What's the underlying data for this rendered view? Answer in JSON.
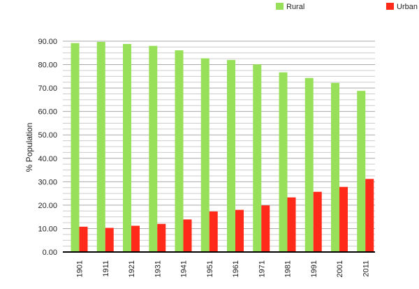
{
  "chart_data": {
    "type": "bar",
    "title": "",
    "xlabel": "",
    "ylabel": "% Population",
    "ylim": [
      0,
      90
    ],
    "y_ticks": [
      "0.00",
      "10.00",
      "20.00",
      "30.00",
      "40.00",
      "50.00",
      "60.00",
      "70.00",
      "80.00",
      "90.00"
    ],
    "grid": true,
    "legend_position": "top-right",
    "categories": [
      "1901",
      "1911",
      "1921",
      "1931",
      "1941",
      "1951",
      "1961",
      "1971",
      "1981",
      "1991",
      "2001",
      "2011"
    ],
    "series": [
      {
        "name": "Rural",
        "color": "#99e05a",
        "values": [
          89.2,
          89.7,
          88.8,
          88.0,
          86.1,
          82.7,
          82.0,
          80.1,
          76.7,
          74.3,
          72.2,
          68.8
        ]
      },
      {
        "name": "Urban",
        "color": "#ff2a1a",
        "values": [
          10.8,
          10.3,
          11.2,
          12.0,
          13.9,
          17.3,
          18.0,
          19.9,
          23.3,
          25.7,
          27.8,
          31.2
        ]
      }
    ]
  }
}
